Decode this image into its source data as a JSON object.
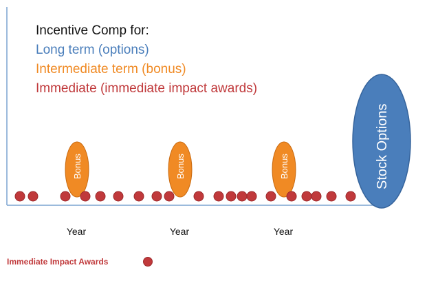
{
  "legend": {
    "heading": "Incentive Comp for:",
    "long_term": "Long term (options)",
    "intermediate_term": "Intermediate term (bonus)",
    "immediate": "Immediate (immediate impact awards)"
  },
  "bonus_label": "Bonus",
  "stock_options_label": "Stock Options",
  "year_labels": [
    "Year",
    "Year",
    "Year"
  ],
  "footer": {
    "label": "Immediate Impact Awards"
  },
  "colors": {
    "long_term": "#4a7ebb",
    "intermediate_term": "#f08a24",
    "immediate": "#c0393b",
    "heading": "#111111"
  }
}
